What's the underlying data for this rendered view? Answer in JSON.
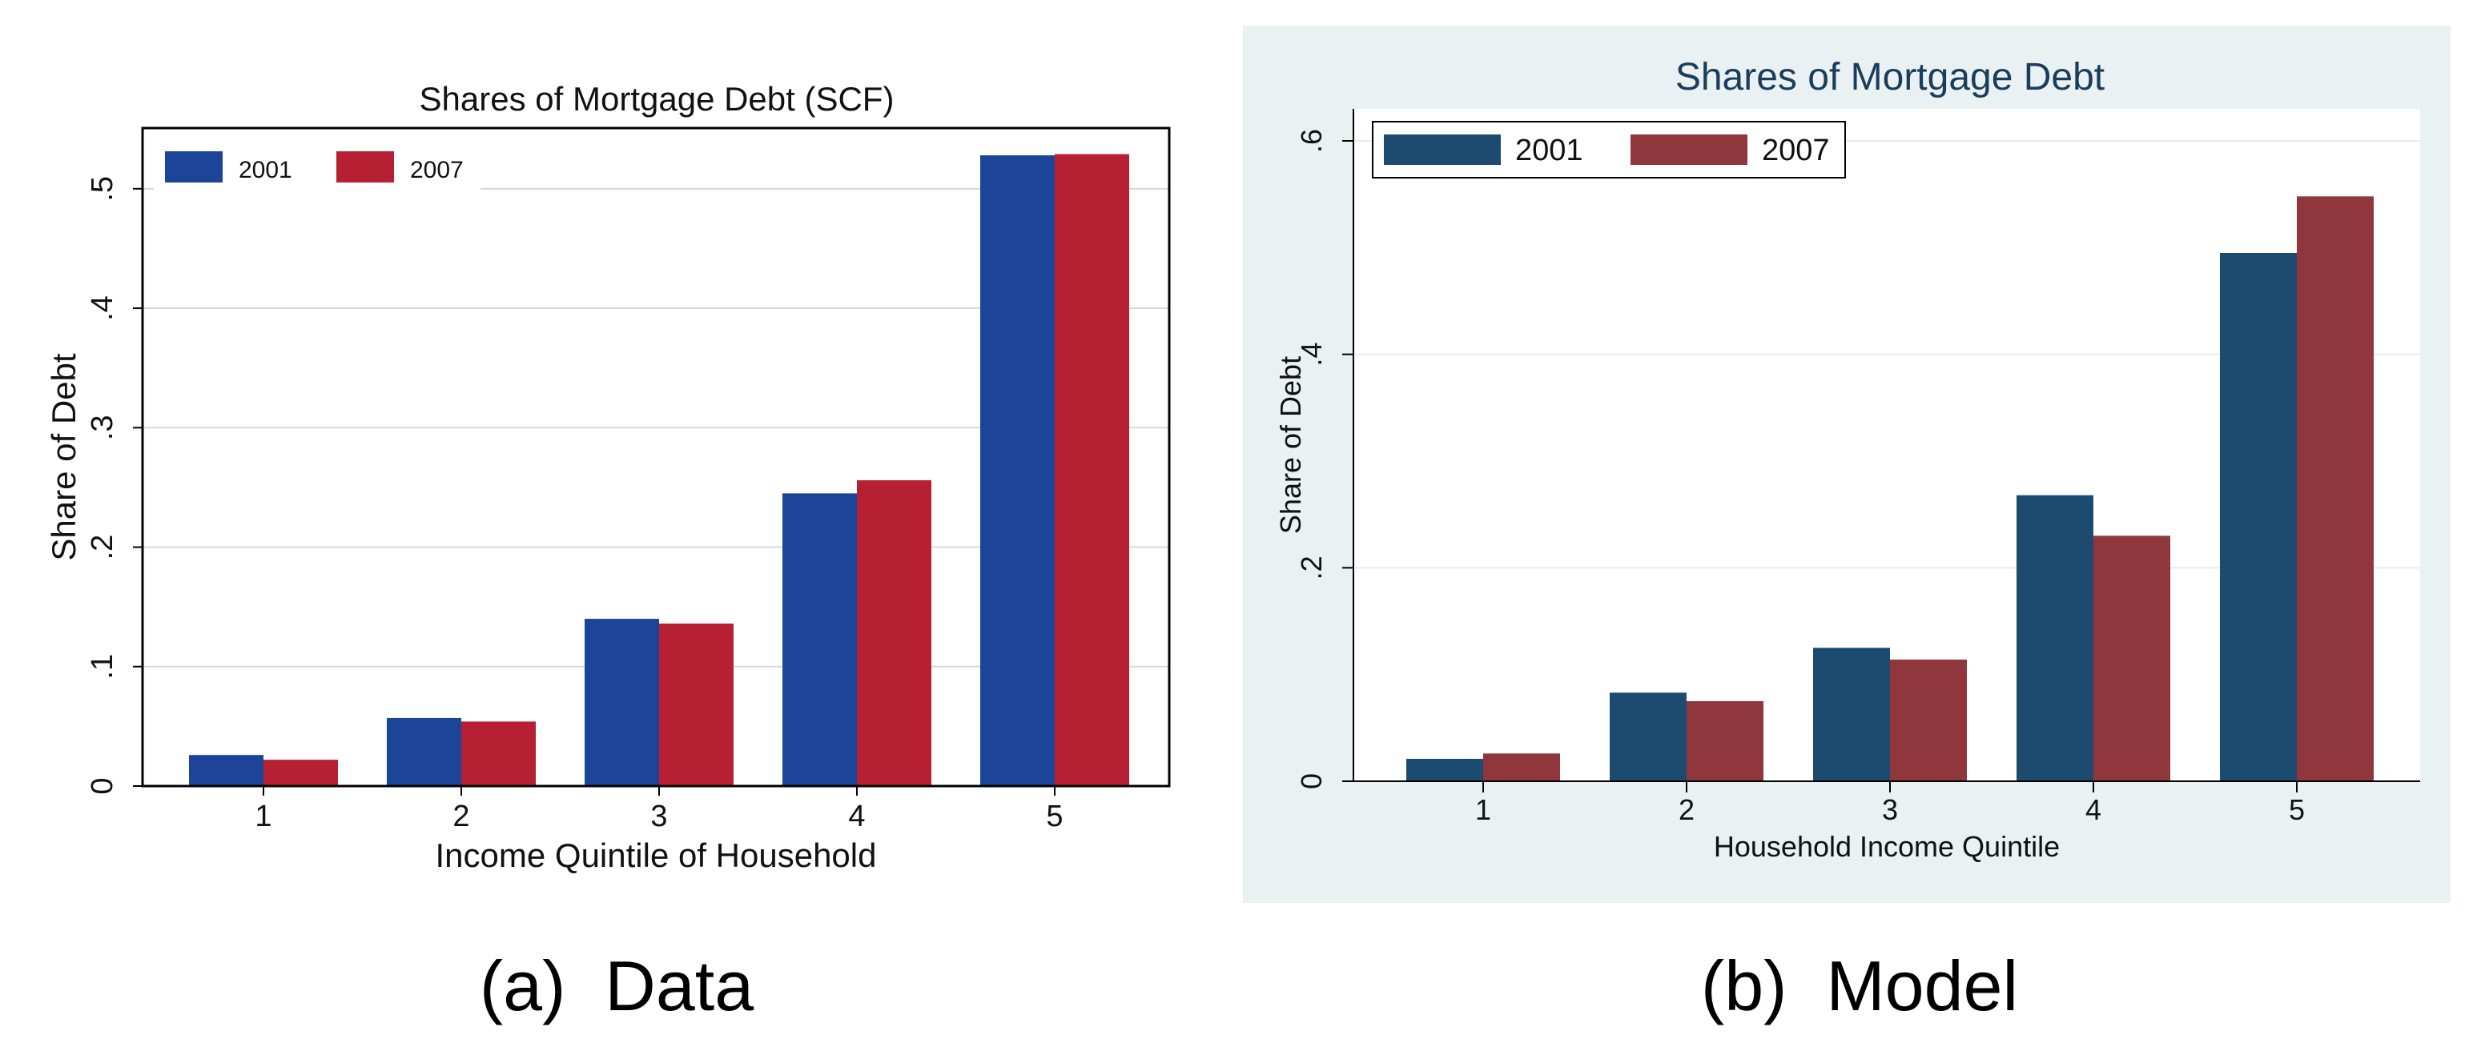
{
  "captions": {
    "left": "(a)  Data",
    "right": "(b)  Model"
  },
  "colors": {
    "left_series_2001": "#1c4599",
    "left_series_2007": "#b71f33",
    "right_series_2001": "#1d4a6f",
    "right_series_2007": "#90363d",
    "right_panel_background": "#eaf1f3",
    "right_title": "#1a3d5c"
  },
  "chart_data": [
    {
      "type": "bar",
      "title": "Shares of Mortgage Debt (SCF)",
      "xlabel": "Income Quintile of Household",
      "ylabel": "Share of Debt",
      "categories": [
        "1",
        "2",
        "3",
        "4",
        "5"
      ],
      "series": [
        {
          "name": "2001",
          "values": [
            0.026,
            0.057,
            0.14,
            0.245,
            0.528
          ]
        },
        {
          "name": "2007",
          "values": [
            0.022,
            0.054,
            0.136,
            0.256,
            0.529
          ]
        }
      ],
      "ylim": [
        0,
        0.55
      ],
      "yticks": [
        0,
        0.1,
        0.2,
        0.3,
        0.4,
        0.5
      ],
      "ytick_labels": [
        "0",
        ".1",
        ".2",
        ".3",
        ".4",
        ".5"
      ],
      "legend": "top-left",
      "grid": true
    },
    {
      "type": "bar",
      "title": "Shares of Mortgage Debt",
      "xlabel": "Household Income Quintile",
      "ylabel": "Share of Debt",
      "categories": [
        "1",
        "2",
        "3",
        "4",
        "5"
      ],
      "series": [
        {
          "name": "2001",
          "values": [
            0.021,
            0.083,
            0.125,
            0.268,
            0.495
          ]
        },
        {
          "name": "2007",
          "values": [
            0.026,
            0.075,
            0.114,
            0.23,
            0.548
          ]
        }
      ],
      "ylim": [
        0,
        0.6
      ],
      "yticks": [
        0,
        0.2,
        0.4,
        0.6
      ],
      "ytick_labels": [
        "0",
        ".2",
        ".4",
        ".6"
      ],
      "legend": "top-left",
      "grid": true
    }
  ]
}
